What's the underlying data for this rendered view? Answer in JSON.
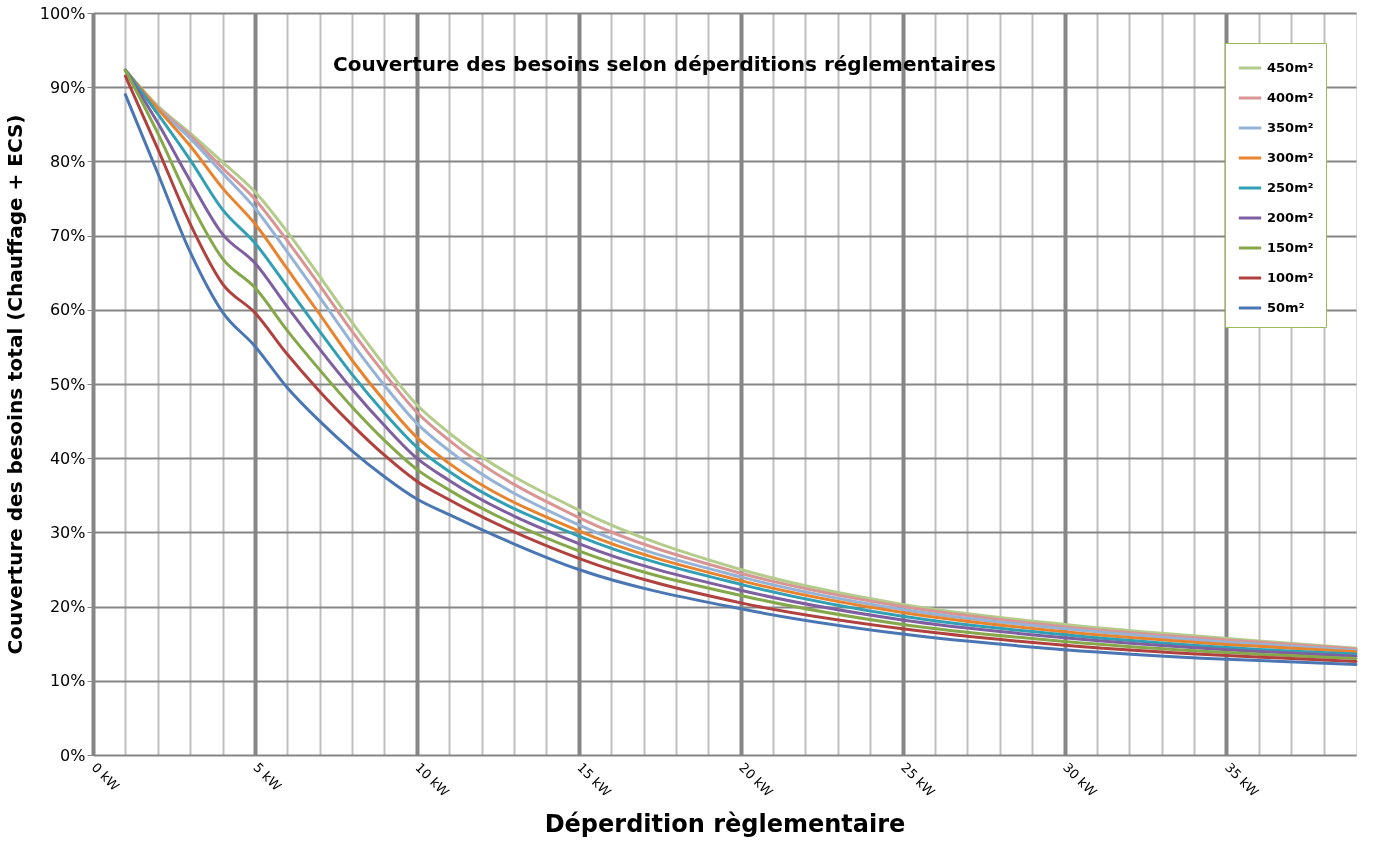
{
  "chart_data": {
    "type": "line",
    "title": "Couverture des besoins selon déperditions réglementaires",
    "xlabel": "Déperdition règlementaire",
    "ylabel": "Couverture des besoins total (Chauffage + ECS)",
    "x": [
      1,
      2,
      3,
      4,
      5,
      6,
      7,
      8,
      9,
      10,
      11,
      15,
      20,
      25,
      30,
      35,
      39
    ],
    "series": [
      {
        "name": "450m²",
        "color": "#b3cc8b",
        "values": [
          92.3,
          87.5,
          83.8,
          79.9,
          75.9,
          70.5,
          64.5,
          58.3,
          52.5,
          47.2,
          43.4,
          33,
          25,
          20.3,
          17.6,
          15.7,
          14.4
        ]
      },
      {
        "name": "400m²",
        "color": "#d99594",
        "values": [
          92.3,
          87.3,
          83.5,
          79.1,
          74.9,
          69.3,
          63.3,
          57.1,
          51.4,
          46.2,
          42.4,
          32,
          24.5,
          20,
          17.3,
          15.5,
          14.3
        ]
      },
      {
        "name": "350m²",
        "color": "#95b3d7",
        "values": [
          92.3,
          87.2,
          83.1,
          78.4,
          73.7,
          67.8,
          61.7,
          55.5,
          49.8,
          44.7,
          41,
          31,
          24,
          19.6,
          17,
          15.2,
          14.1
        ]
      },
      {
        "name": "300m²",
        "color": "#e8832e",
        "values": [
          92.3,
          87.1,
          82.1,
          76.4,
          71.6,
          65.5,
          59.4,
          53.2,
          47.7,
          42.8,
          39.3,
          30.2,
          23.5,
          19.2,
          16.6,
          14.9,
          13.9
        ]
      },
      {
        "name": "250m²",
        "color": "#31a0b5",
        "values": [
          92.3,
          86.4,
          80.2,
          73.5,
          69,
          63.1,
          57.1,
          51.3,
          46.1,
          41.5,
          38.2,
          29.5,
          23,
          18.7,
          16.2,
          14.5,
          13.6
        ]
      },
      {
        "name": "200m²",
        "color": "#7f5fa0",
        "values": [
          92.3,
          85.2,
          77.4,
          70.2,
          66.3,
          60.4,
          54.7,
          49.3,
          44.4,
          40,
          37,
          28.5,
          22.2,
          18.2,
          15.8,
          14.2,
          13.3
        ]
      },
      {
        "name": "150m²",
        "color": "#84a84a",
        "values": [
          92.3,
          83.8,
          74.5,
          66.9,
          63,
          57.2,
          51.9,
          46.9,
          42.4,
          38.5,
          35.7,
          27.5,
          21.5,
          17.6,
          15.3,
          13.8,
          13
        ]
      },
      {
        "name": "100m²",
        "color": "#b0413e",
        "values": [
          91.5,
          81.7,
          71.6,
          63.5,
          59.6,
          54,
          49,
          44.5,
          40.4,
          36.9,
          34.4,
          26.5,
          20.5,
          17,
          14.8,
          13.4,
          12.6
        ]
      },
      {
        "name": "50m²",
        "color": "#4a77b4",
        "values": [
          89,
          78.4,
          67.8,
          59.7,
          55.1,
          49.5,
          45,
          41,
          37.5,
          34.5,
          32.4,
          25,
          19.7,
          16.3,
          14.2,
          12.9,
          12.2
        ]
      }
    ],
    "xlim": [
      0,
      39
    ],
    "xticks": [
      {
        "value": 0,
        "label": "0 kW"
      },
      {
        "value": 1,
        "label": null
      },
      {
        "value": 2,
        "label": null
      },
      {
        "value": 3,
        "label": null
      },
      {
        "value": 4,
        "label": null
      },
      {
        "value": 5,
        "label": "5 kW"
      },
      {
        "value": 6,
        "label": null
      },
      {
        "value": 7,
        "label": null
      },
      {
        "value": 8,
        "label": null
      },
      {
        "value": 9,
        "label": null
      },
      {
        "value": 10,
        "label": "10 kW"
      },
      {
        "value": 11,
        "label": null
      },
      {
        "value": 12,
        "label": null
      },
      {
        "value": 13,
        "label": null
      },
      {
        "value": 14,
        "label": null
      },
      {
        "value": 15,
        "label": "15 kW"
      },
      {
        "value": 16,
        "label": null
      },
      {
        "value": 17,
        "label": null
      },
      {
        "value": 18,
        "label": null
      },
      {
        "value": 19,
        "label": null
      },
      {
        "value": 20,
        "label": "20 kW"
      },
      {
        "value": 21,
        "label": null
      },
      {
        "value": 22,
        "label": null
      },
      {
        "value": 23,
        "label": null
      },
      {
        "value": 24,
        "label": null
      },
      {
        "value": 25,
        "label": "25 kW"
      },
      {
        "value": 26,
        "label": null
      },
      {
        "value": 27,
        "label": null
      },
      {
        "value": 28,
        "label": null
      },
      {
        "value": 29,
        "label": null
      },
      {
        "value": 30,
        "label": "30 kW"
      },
      {
        "value": 31,
        "label": null
      },
      {
        "value": 32,
        "label": null
      },
      {
        "value": 33,
        "label": null
      },
      {
        "value": 34,
        "label": null
      },
      {
        "value": 35,
        "label": "35 kW"
      },
      {
        "value": 36,
        "label": null
      },
      {
        "value": 37,
        "label": null
      },
      {
        "value": 38,
        "label": null
      }
    ],
    "ylim": [
      0,
      100
    ],
    "yticks": [
      {
        "value": 0,
        "label": "0%"
      },
      {
        "value": 10,
        "label": "10%"
      },
      {
        "value": 20,
        "label": "20%"
      },
      {
        "value": 30,
        "label": "30%"
      },
      {
        "value": 40,
        "label": "40%"
      },
      {
        "value": 50,
        "label": "50%"
      },
      {
        "value": 60,
        "label": "60%"
      },
      {
        "value": 70,
        "label": "70%"
      },
      {
        "value": 80,
        "label": "80%"
      },
      {
        "value": 90,
        "label": "90%"
      },
      {
        "value": 100,
        "label": "100%"
      }
    ],
    "grid": true,
    "legend": "top right",
    "marker": "none",
    "line_style": "solid"
  }
}
